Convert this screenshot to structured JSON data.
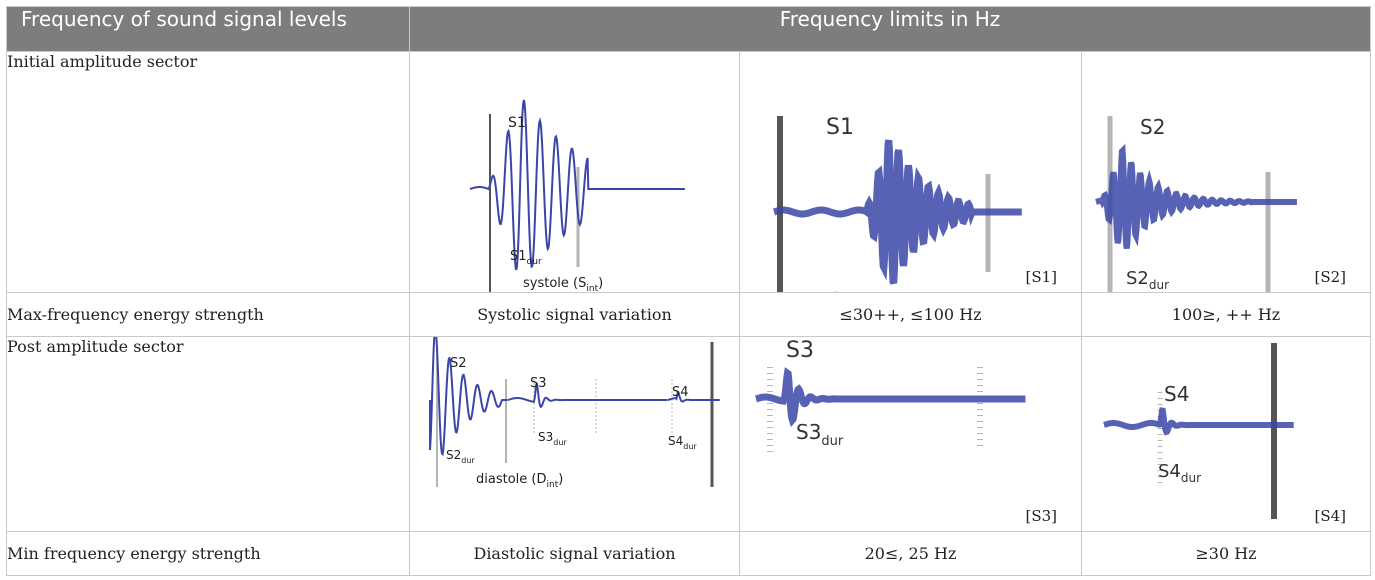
{
  "header": {
    "col1": "Frequency of sound signal levels",
    "col2": "Frequency limits in Hz"
  },
  "rows": {
    "initial": {
      "label": "Initial amplitude sector",
      "cite_s1": "[S1]",
      "cite_s2": "[S2]"
    },
    "max": {
      "label": "Max-frequency energy strength",
      "c1": "Systolic signal variation",
      "c2": "≤30++, ≤100 Hz",
      "c3": "100≥, ++ Hz"
    },
    "post": {
      "label": "Post amplitude sector",
      "cite_s3": "[S3]",
      "cite_s4": "[S4]"
    },
    "min": {
      "label": "Min frequency energy strength",
      "c1": "Diastolic signal variation",
      "c2": "20≤, 25 Hz",
      "c3": "≥30 Hz"
    }
  },
  "figures": {
    "systole": {
      "s1": "S1",
      "s1dur": "S1",
      "dur_sub": "dur",
      "caption": "systole (S",
      "int_sub": "int",
      "close": ")"
    },
    "s1_zoom": {
      "title": "S1",
      "dur": "S1",
      "dur_sub": "dur"
    },
    "s2_zoom": {
      "title": "S2",
      "dur": "S2",
      "dur_sub": "dur"
    },
    "diastole": {
      "s2": "S2",
      "s2dur": "S2",
      "s3": "S3",
      "s3dur": "S3",
      "s4": "S4",
      "s4dur": "S4",
      "dur_sub": "dur",
      "caption": "diastole (D",
      "int_sub": "int",
      "close": ")"
    },
    "s3_zoom": {
      "title": "S3",
      "dur": "S3",
      "dur_sub": "dur"
    },
    "s4_zoom": {
      "title": "S4",
      "dur": "S4",
      "dur_sub": "dur"
    },
    "wave_color": "#3b46a8",
    "marker_dark": "#555555",
    "marker_light": "#b5b5b5"
  }
}
